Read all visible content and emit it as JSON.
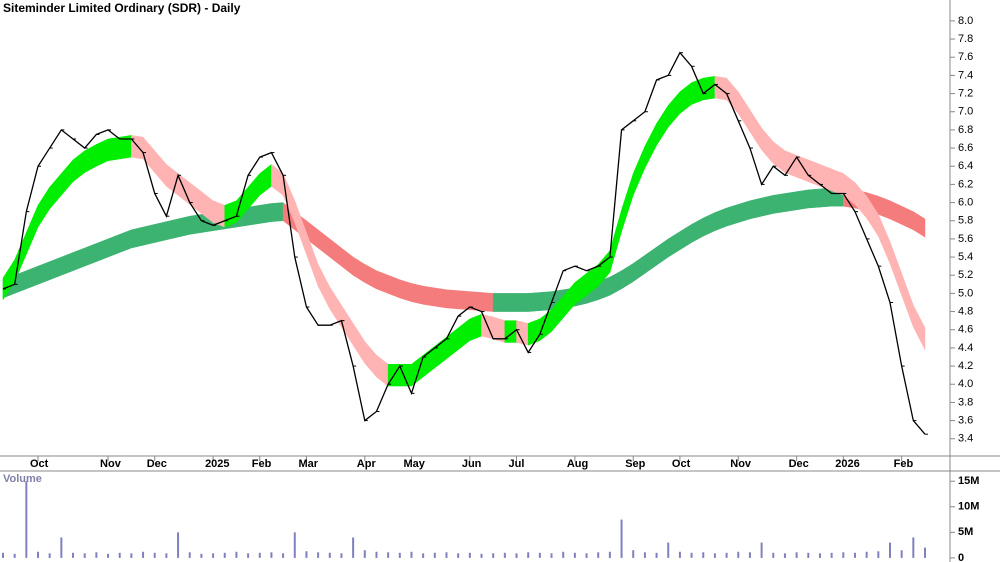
{
  "chart_data": [
    {
      "type": "line",
      "title": "Siteminder Limited Ordinary (SDR) - Daily",
      "categories": [
        null,
        null,
        null,
        "Oct",
        null,
        null,
        null,
        null,
        null,
        "Nov",
        null,
        null,
        null,
        "Dec",
        null,
        null,
        null,
        null,
        "2025",
        null,
        null,
        null,
        "Feb",
        null,
        null,
        null,
        "Mar",
        null,
        null,
        null,
        null,
        "Apr",
        null,
        null,
        null,
        "May",
        null,
        null,
        null,
        null,
        "Jun",
        null,
        null,
        null,
        "Jul",
        null,
        null,
        null,
        null,
        "Aug",
        null,
        null,
        null,
        null,
        "Sep",
        null,
        null,
        null,
        "Oct",
        null,
        null,
        null,
        null,
        "Nov",
        null,
        null,
        null,
        null,
        "Dec",
        null,
        null,
        null,
        "2026",
        null,
        null,
        null,
        null,
        "Feb",
        null,
        null
      ],
      "series": [
        {
          "color": "#000000",
          "values": [
            5.05,
            5.1,
            5.9,
            6.4,
            6.6,
            6.8,
            6.7,
            6.6,
            6.75,
            6.8,
            6.7,
            6.7,
            6.55,
            6.1,
            5.85,
            6.3,
            6.0,
            5.8,
            5.75,
            5.8,
            5.85,
            6.3,
            6.5,
            6.55,
            6.3,
            5.4,
            4.85,
            4.65,
            4.65,
            4.7,
            4.2,
            3.6,
            3.7,
            4.0,
            4.2,
            3.9,
            4.3,
            4.4,
            4.5,
            4.75,
            4.85,
            4.8,
            4.5,
            4.5,
            4.6,
            4.35,
            4.55,
            4.9,
            5.25,
            5.3,
            5.25,
            5.3,
            5.4,
            6.8,
            6.9,
            7.0,
            7.35,
            7.4,
            7.65,
            7.5,
            7.2,
            7.3,
            7.2,
            6.9,
            6.6,
            6.2,
            6.4,
            6.3,
            6.5,
            6.3,
            6.2,
            6.1,
            6.1,
            5.9,
            5.6,
            5.3,
            4.9,
            4.2,
            3.6,
            3.45
          ]
        }
      ],
      "bands": [
        {
          "up_color": "#3cb371",
          "down_color": "#f47c7c",
          "upper": [
            5.15,
            5.2,
            5.25,
            5.3,
            5.35,
            5.4,
            5.45,
            5.5,
            5.55,
            5.6,
            5.65,
            5.7,
            5.73,
            5.76,
            5.79,
            5.82,
            5.85,
            5.87,
            5.89,
            5.91,
            5.93,
            5.95,
            5.97,
            5.99,
            6.0,
            5.9,
            5.8,
            5.7,
            5.6,
            5.5,
            5.4,
            5.32,
            5.25,
            5.2,
            5.15,
            5.11,
            5.08,
            5.06,
            5.04,
            5.03,
            5.02,
            5.01,
            5.0,
            5.0,
            5.0,
            5.0,
            5.01,
            5.02,
            5.04,
            5.06,
            5.09,
            5.13,
            5.18,
            5.25,
            5.33,
            5.42,
            5.51,
            5.6,
            5.68,
            5.76,
            5.83,
            5.89,
            5.94,
            5.98,
            6.02,
            6.05,
            6.08,
            6.1,
            6.12,
            6.14,
            6.15,
            6.16,
            6.16,
            6.14,
            6.11,
            6.07,
            6.02,
            5.96,
            5.9,
            5.82
          ],
          "lower": [
            4.95,
            5.0,
            5.05,
            5.1,
            5.15,
            5.2,
            5.25,
            5.3,
            5.35,
            5.4,
            5.45,
            5.5,
            5.53,
            5.56,
            5.59,
            5.62,
            5.65,
            5.67,
            5.69,
            5.71,
            5.73,
            5.75,
            5.77,
            5.79,
            5.8,
            5.7,
            5.6,
            5.5,
            5.4,
            5.3,
            5.2,
            5.12,
            5.05,
            5.0,
            4.95,
            4.91,
            4.88,
            4.86,
            4.84,
            4.83,
            4.82,
            4.81,
            4.8,
            4.8,
            4.8,
            4.8,
            4.81,
            4.82,
            4.84,
            4.86,
            4.89,
            4.93,
            4.98,
            5.05,
            5.13,
            5.22,
            5.31,
            5.4,
            5.48,
            5.56,
            5.63,
            5.69,
            5.74,
            5.78,
            5.82,
            5.85,
            5.88,
            5.9,
            5.92,
            5.94,
            5.95,
            5.96,
            5.96,
            5.94,
            5.91,
            5.87,
            5.82,
            5.76,
            5.7,
            5.62
          ]
        },
        {
          "up_color": "#00ee00",
          "down_color": "#ffb3b3",
          "upper": [
            5.17,
            5.37,
            5.67,
            5.97,
            6.17,
            6.32,
            6.47,
            6.57,
            6.64,
            6.7,
            6.72,
            6.74,
            6.72,
            6.57,
            6.42,
            6.32,
            6.22,
            6.12,
            6.02,
            5.97,
            6.02,
            6.17,
            6.32,
            6.42,
            6.32,
            6.02,
            5.67,
            5.32,
            5.07,
            4.87,
            4.67,
            4.47,
            4.32,
            4.22,
            4.22,
            4.22,
            4.32,
            4.42,
            4.52,
            4.62,
            4.72,
            4.77,
            4.74,
            4.7,
            4.7,
            4.67,
            4.72,
            4.82,
            4.97,
            5.12,
            5.22,
            5.32,
            5.47,
            5.92,
            6.32,
            6.62,
            6.87,
            7.07,
            7.22,
            7.32,
            7.37,
            7.39,
            7.37,
            7.22,
            7.02,
            6.82,
            6.67,
            6.57,
            6.52,
            6.47,
            6.42,
            6.37,
            6.32,
            6.22,
            6.07,
            5.87,
            5.57,
            5.22,
            4.87,
            4.62
          ],
          "lower": [
            4.93,
            5.13,
            5.43,
            5.73,
            5.93,
            6.08,
            6.23,
            6.33,
            6.4,
            6.46,
            6.48,
            6.5,
            6.48,
            6.33,
            6.18,
            6.08,
            5.98,
            5.88,
            5.78,
            5.73,
            5.78,
            5.93,
            6.08,
            6.18,
            6.08,
            5.78,
            5.43,
            5.08,
            4.83,
            4.63,
            4.43,
            4.23,
            4.08,
            3.98,
            3.98,
            3.98,
            4.08,
            4.18,
            4.28,
            4.38,
            4.48,
            4.53,
            4.5,
            4.46,
            4.46,
            4.43,
            4.48,
            4.58,
            4.73,
            4.88,
            4.98,
            5.08,
            5.23,
            5.68,
            6.08,
            6.38,
            6.63,
            6.83,
            6.98,
            7.08,
            7.13,
            7.15,
            7.13,
            6.98,
            6.78,
            6.58,
            6.43,
            6.33,
            6.28,
            6.23,
            6.18,
            6.13,
            6.08,
            5.98,
            5.83,
            5.63,
            5.33,
            4.98,
            4.63,
            4.38
          ]
        }
      ],
      "ylim": [
        3.21,
        8.23
      ],
      "yticks": [
        3.4,
        3.6,
        3.8,
        {
          "value": 4.0,
          "label": "4.0"
        },
        4.2,
        4.4,
        4.6,
        4.8,
        {
          "value": 5.0,
          "label": "5.0"
        },
        5.2,
        5.4,
        5.6,
        5.8,
        {
          "value": 6.0,
          "label": "6.0"
        },
        6.2,
        6.4,
        6.6,
        6.8,
        {
          "value": 7.0,
          "label": "7.0"
        },
        7.2,
        7.4,
        7.6,
        7.8,
        {
          "value": 8.0,
          "label": "8.0"
        }
      ]
    },
    {
      "type": "bar",
      "title": "Volume",
      "color": "#8080c0",
      "values": [
        1000000,
        800000,
        15000000,
        1200000,
        900000,
        4000000,
        1000000,
        900000,
        1100000,
        800000,
        1000000,
        900000,
        1200000,
        1000000,
        900000,
        5000000,
        1100000,
        800000,
        900000,
        1000000,
        1200000,
        900000,
        1000000,
        1100000,
        900000,
        5000000,
        1300000,
        1100000,
        1000000,
        900000,
        4000000,
        1500000,
        1200000,
        1100000,
        1000000,
        1200000,
        900000,
        1000000,
        1100000,
        900000,
        1000000,
        800000,
        900000,
        1000000,
        900000,
        1100000,
        1000000,
        900000,
        1200000,
        1000000,
        900000,
        1100000,
        1200000,
        7500000,
        1500000,
        1100000,
        1000000,
        3000000,
        1200000,
        1000000,
        1100000,
        900000,
        1000000,
        1200000,
        1100000,
        3000000,
        1000000,
        900000,
        1100000,
        1000000,
        900000,
        1000000,
        1100000,
        1000000,
        1200000,
        1300000,
        3000000,
        1500000,
        4000000,
        2000000
      ],
      "ylim": [
        -800000,
        16800000
      ],
      "yticks": [
        0,
        {
          "value": 5000000,
          "label": "5M"
        },
        {
          "value": 10000000,
          "label": "10M"
        },
        {
          "value": 15000000,
          "label": "15M"
        }
      ]
    }
  ]
}
